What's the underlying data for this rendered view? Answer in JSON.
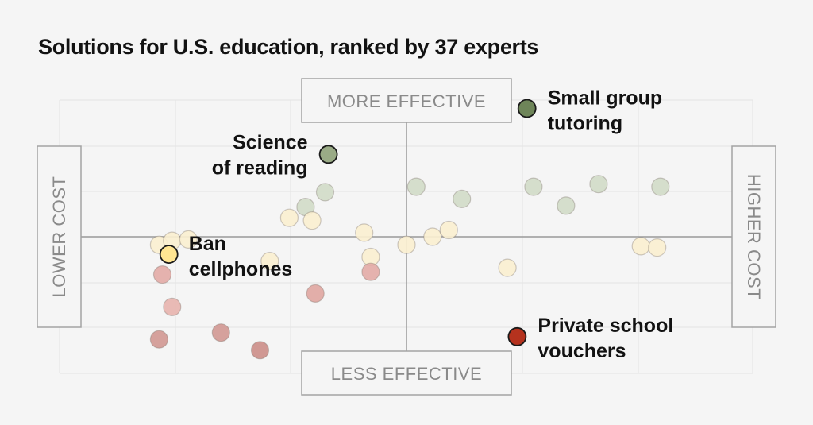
{
  "page": {
    "title": "Solutions for U.S. education, ranked by 37 experts"
  },
  "chart_data": {
    "type": "scatter",
    "title": "Solutions for U.S. education, ranked by 37 experts",
    "x_axis": {
      "low_label": "LOWER COST",
      "high_label": "HIGHER COST",
      "range": [
        -1,
        1
      ]
    },
    "y_axis": {
      "low_label": "LESS EFFECTIVE",
      "high_label": "MORE EFFECTIVE",
      "range": [
        -1,
        1
      ]
    },
    "grid": true,
    "colors": {
      "strong_green": "#6e8559",
      "light_green": "#d2dbc8",
      "neutral": "#fbf0d0",
      "light_red": "#e0a6a1",
      "medium_red": "#cc8e88",
      "strong_red": "#b5321e",
      "highlight_yellow": "#ffe592"
    },
    "highlighted": [
      {
        "name": "small-group-tutoring",
        "label_lines": [
          "Small group",
          "tutoring"
        ],
        "x": 0.37,
        "y": 0.95,
        "color": "#6e8559"
      },
      {
        "name": "science-of-reading",
        "label_lines": [
          "Science",
          "of reading"
        ],
        "x": -0.24,
        "y": 0.61,
        "color": "#9aab86"
      },
      {
        "name": "ban-cellphones",
        "label_lines": [
          "Ban",
          "cellphones"
        ],
        "x": -0.73,
        "y": -0.13,
        "color": "#ffe592"
      },
      {
        "name": "private-school-vouchers",
        "label_lines": [
          "Private school",
          "vouchers"
        ],
        "x": 0.34,
        "y": -0.74,
        "color": "#b5321e"
      }
    ],
    "points": [
      {
        "x": -0.76,
        "y": -0.06,
        "color": "#fbf0d0"
      },
      {
        "x": -0.72,
        "y": -0.03,
        "color": "#fbf0d0"
      },
      {
        "x": -0.67,
        "y": -0.02,
        "color": "#fbf0d0"
      },
      {
        "x": -0.75,
        "y": -0.28,
        "color": "#e3aba6"
      },
      {
        "x": -0.72,
        "y": -0.52,
        "color": "#e8b4ae"
      },
      {
        "x": -0.76,
        "y": -0.76,
        "color": "#d29892"
      },
      {
        "x": -0.57,
        "y": -0.71,
        "color": "#d29892"
      },
      {
        "x": -0.45,
        "y": -0.84,
        "color": "#cc8e88"
      },
      {
        "x": -0.42,
        "y": -0.18,
        "color": "#fbf0d0"
      },
      {
        "x": -0.36,
        "y": 0.14,
        "color": "#fbf0d0"
      },
      {
        "x": -0.31,
        "y": 0.22,
        "color": "#d2dbc8"
      },
      {
        "x": -0.29,
        "y": 0.12,
        "color": "#fbf0d0"
      },
      {
        "x": -0.25,
        "y": 0.33,
        "color": "#d2dbc8"
      },
      {
        "x": -0.28,
        "y": -0.42,
        "color": "#e0a6a1"
      },
      {
        "x": -0.13,
        "y": 0.03,
        "color": "#fbf0d0"
      },
      {
        "x": -0.11,
        "y": -0.15,
        "color": "#fbf0d0"
      },
      {
        "x": -0.11,
        "y": -0.26,
        "color": "#e3aba6"
      },
      {
        "x": 0.0,
        "y": -0.06,
        "color": "#fbf0d0"
      },
      {
        "x": 0.03,
        "y": 0.37,
        "color": "#d2dbc8"
      },
      {
        "x": 0.08,
        "y": 0.0,
        "color": "#fbf0d0"
      },
      {
        "x": 0.13,
        "y": 0.05,
        "color": "#fbf0d0"
      },
      {
        "x": 0.17,
        "y": 0.28,
        "color": "#d2dbc8"
      },
      {
        "x": 0.31,
        "y": -0.23,
        "color": "#fbf0d0"
      },
      {
        "x": 0.39,
        "y": 0.37,
        "color": "#d2dbc8"
      },
      {
        "x": 0.49,
        "y": 0.23,
        "color": "#d2dbc8"
      },
      {
        "x": 0.59,
        "y": 0.39,
        "color": "#d2dbc8"
      },
      {
        "x": 0.72,
        "y": -0.07,
        "color": "#fbf0d0"
      },
      {
        "x": 0.77,
        "y": -0.08,
        "color": "#fbf0d0"
      },
      {
        "x": 0.78,
        "y": 0.37,
        "color": "#d2dbc8"
      }
    ]
  }
}
